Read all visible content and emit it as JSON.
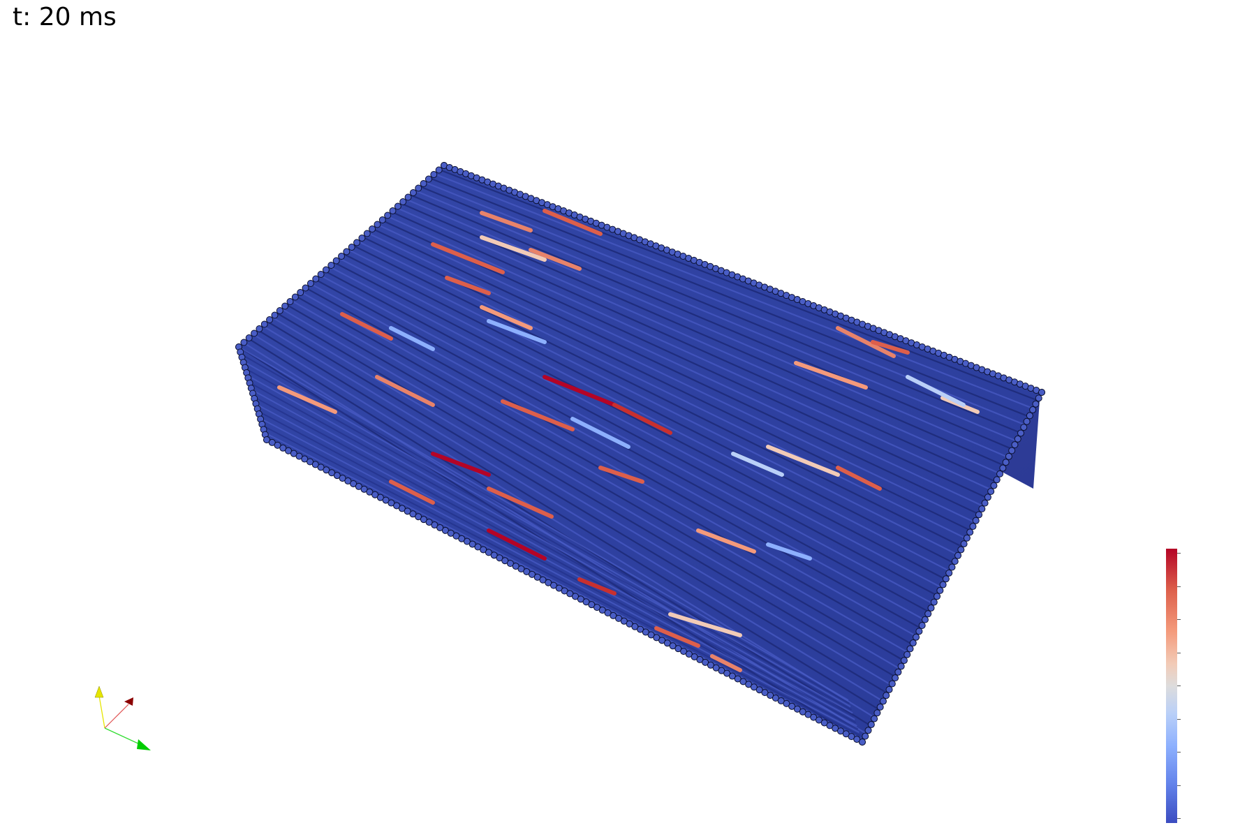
{
  "overlay": {
    "time_label": "t: 20 ms"
  },
  "colormap": {
    "name": "cool-to-warm",
    "low_color": "#3b4cc0",
    "mid_color": "#dddcdc",
    "high_color": "#b40426",
    "tick_count": 9
  },
  "scene": {
    "particle_base_color": "#2f3f9c",
    "particle_edge_color": "#0b1030",
    "background": "#ffffff"
  },
  "orientation_axes": {
    "x_color": "#8b0000",
    "y_color": "#e6e600",
    "z_color": "#00cc00"
  }
}
